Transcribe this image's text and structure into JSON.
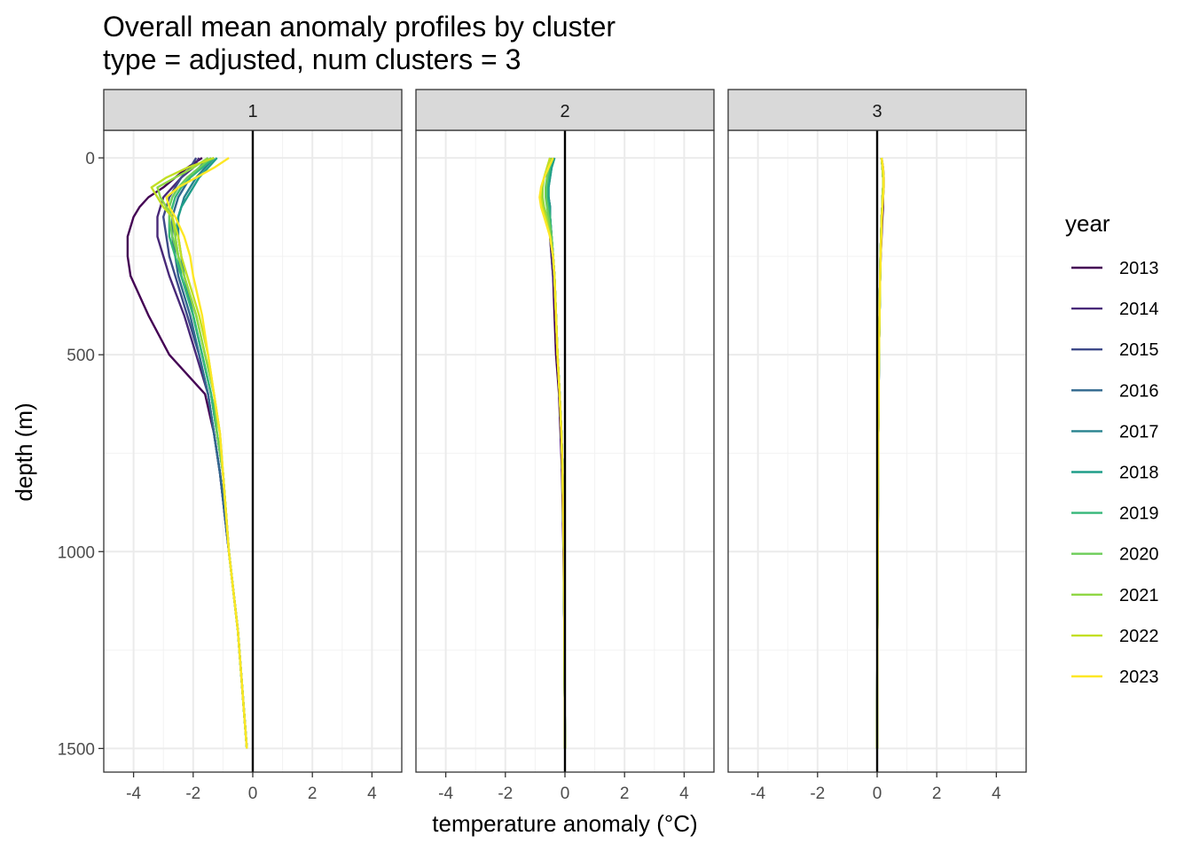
{
  "title_line1": "Overall mean anomaly profiles by cluster",
  "title_line2": "type = adjusted, num clusters = 3",
  "chart_data": {
    "type": "line",
    "title": "Overall mean anomaly profiles by cluster",
    "subtitle": "type = adjusted, num clusters = 3",
    "xlabel": "temperature anomaly (°C)",
    "ylabel": "depth (m)",
    "xlim": [
      -5,
      5
    ],
    "ylim": [
      1560,
      -70
    ],
    "y_reversed": true,
    "x_ticks": [
      -4,
      -2,
      0,
      2,
      4
    ],
    "y_ticks": [
      0,
      500,
      1000,
      1500
    ],
    "grid": true,
    "legend_title": "year",
    "legend_position": "right",
    "reference_line_x": 0,
    "panels": [
      "1",
      "2",
      "3"
    ],
    "depths": [
      0,
      25,
      50,
      75,
      100,
      125,
      150,
      200,
      250,
      300,
      400,
      500,
      600,
      700,
      800,
      1000,
      1200,
      1500
    ],
    "series": [
      {
        "name": "2013",
        "color": "#440154",
        "panels": {
          "1": [
            -1.7,
            -2.2,
            -2.6,
            -3.0,
            -3.5,
            -3.8,
            -4.0,
            -4.2,
            -4.2,
            -4.1,
            -3.5,
            -2.8,
            -1.6,
            -1.3,
            -1.1,
            -0.8,
            -0.5,
            -0.2
          ],
          "2": [
            -0.5,
            -0.55,
            -0.6,
            -0.6,
            -0.55,
            -0.5,
            -0.5,
            -0.5,
            -0.45,
            -0.4,
            -0.35,
            -0.3,
            -0.2,
            -0.15,
            -0.1,
            -0.05,
            -0.02,
            0.0
          ],
          "3": [
            0.15,
            0.2,
            0.22,
            0.22,
            0.2,
            0.2,
            0.18,
            0.15,
            0.12,
            0.1,
            0.08,
            0.06,
            0.05,
            0.04,
            0.03,
            0.02,
            0.01,
            0.0
          ]
        }
      },
      {
        "name": "2014",
        "color": "#482878",
        "panels": {
          "1": [
            -1.8,
            -2.0,
            -2.4,
            -2.7,
            -3.0,
            -3.1,
            -3.2,
            -3.2,
            -3.0,
            -2.8,
            -2.3,
            -1.9,
            -1.5,
            -1.3,
            -1.1,
            -0.8,
            -0.5,
            -0.2
          ],
          "2": [
            -0.45,
            -0.5,
            -0.55,
            -0.6,
            -0.6,
            -0.55,
            -0.55,
            -0.5,
            -0.45,
            -0.4,
            -0.3,
            -0.25,
            -0.18,
            -0.12,
            -0.08,
            -0.04,
            -0.02,
            0.0
          ],
          "3": [
            0.15,
            0.18,
            0.2,
            0.2,
            0.2,
            0.18,
            0.16,
            0.14,
            0.12,
            0.1,
            0.08,
            0.06,
            0.05,
            0.04,
            0.03,
            0.02,
            0.01,
            0.0
          ]
        }
      },
      {
        "name": "2015",
        "color": "#3E4A89",
        "panels": {
          "1": [
            -1.9,
            -2.1,
            -2.4,
            -2.6,
            -2.8,
            -2.9,
            -3.0,
            -2.9,
            -2.8,
            -2.6,
            -2.2,
            -1.8,
            -1.5,
            -1.3,
            -1.1,
            -0.8,
            -0.5,
            -0.2
          ],
          "2": [
            -0.5,
            -0.55,
            -0.6,
            -0.6,
            -0.6,
            -0.55,
            -0.5,
            -0.45,
            -0.4,
            -0.35,
            -0.3,
            -0.25,
            -0.18,
            -0.12,
            -0.08,
            -0.04,
            -0.02,
            0.0
          ],
          "3": [
            0.15,
            0.18,
            0.2,
            0.2,
            0.18,
            0.17,
            0.15,
            0.13,
            0.11,
            0.1,
            0.08,
            0.06,
            0.05,
            0.04,
            0.03,
            0.02,
            0.01,
            0.0
          ]
        }
      },
      {
        "name": "2016",
        "color": "#31688E",
        "panels": {
          "1": [
            -1.5,
            -1.8,
            -2.1,
            -2.3,
            -2.5,
            -2.6,
            -2.7,
            -2.7,
            -2.6,
            -2.5,
            -2.1,
            -1.8,
            -1.5,
            -1.3,
            -1.1,
            -0.8,
            -0.5,
            -0.2
          ],
          "2": [
            -0.4,
            -0.5,
            -0.55,
            -0.6,
            -0.6,
            -0.55,
            -0.5,
            -0.45,
            -0.4,
            -0.35,
            -0.3,
            -0.25,
            -0.18,
            -0.12,
            -0.08,
            -0.04,
            -0.02,
            0.0
          ],
          "3": [
            0.15,
            0.18,
            0.2,
            0.2,
            0.18,
            0.17,
            0.15,
            0.13,
            0.11,
            0.1,
            0.08,
            0.06,
            0.05,
            0.04,
            0.03,
            0.02,
            0.01,
            0.0
          ]
        }
      },
      {
        "name": "2017",
        "color": "#26828E",
        "panels": {
          "1": [
            -1.3,
            -1.6,
            -1.9,
            -2.1,
            -2.3,
            -2.4,
            -2.5,
            -2.5,
            -2.4,
            -2.3,
            -2.0,
            -1.7,
            -1.4,
            -1.2,
            -1.0,
            -0.8,
            -0.5,
            -0.2
          ],
          "2": [
            -0.35,
            -0.45,
            -0.5,
            -0.55,
            -0.55,
            -0.5,
            -0.5,
            -0.45,
            -0.4,
            -0.35,
            -0.3,
            -0.25,
            -0.18,
            -0.12,
            -0.08,
            -0.04,
            -0.02,
            0.0
          ],
          "3": [
            0.15,
            0.18,
            0.2,
            0.2,
            0.18,
            0.17,
            0.15,
            0.13,
            0.11,
            0.1,
            0.08,
            0.06,
            0.05,
            0.04,
            0.03,
            0.02,
            0.01,
            0.0
          ]
        }
      },
      {
        "name": "2018",
        "color": "#1F9E89",
        "panels": {
          "1": [
            -1.2,
            -1.5,
            -1.8,
            -2.0,
            -2.2,
            -2.4,
            -2.5,
            -2.6,
            -2.5,
            -2.4,
            -2.0,
            -1.7,
            -1.4,
            -1.2,
            -1.0,
            -0.8,
            -0.5,
            -0.2
          ],
          "2": [
            -0.35,
            -0.45,
            -0.5,
            -0.55,
            -0.55,
            -0.5,
            -0.5,
            -0.45,
            -0.4,
            -0.35,
            -0.3,
            -0.25,
            -0.18,
            -0.12,
            -0.08,
            -0.04,
            -0.02,
            0.0
          ],
          "3": [
            0.15,
            0.18,
            0.2,
            0.2,
            0.18,
            0.17,
            0.15,
            0.13,
            0.11,
            0.1,
            0.08,
            0.06,
            0.05,
            0.04,
            0.03,
            0.02,
            0.01,
            0.0
          ]
        }
      },
      {
        "name": "2019",
        "color": "#35B779",
        "panels": {
          "1": [
            -1.3,
            -1.7,
            -2.1,
            -2.4,
            -2.6,
            -2.7,
            -2.8,
            -2.8,
            -2.6,
            -2.4,
            -2.0,
            -1.7,
            -1.4,
            -1.2,
            -1.0,
            -0.8,
            -0.5,
            -0.2
          ],
          "2": [
            -0.4,
            -0.5,
            -0.55,
            -0.6,
            -0.6,
            -0.55,
            -0.5,
            -0.45,
            -0.4,
            -0.35,
            -0.3,
            -0.25,
            -0.18,
            -0.12,
            -0.08,
            -0.04,
            -0.02,
            0.0
          ],
          "3": [
            0.15,
            0.18,
            0.2,
            0.2,
            0.18,
            0.17,
            0.15,
            0.13,
            0.11,
            0.1,
            0.08,
            0.06,
            0.05,
            0.04,
            0.03,
            0.02,
            0.01,
            0.0
          ]
        }
      },
      {
        "name": "2020",
        "color": "#6DCD59",
        "panels": {
          "1": [
            -1.4,
            -1.8,
            -2.2,
            -2.5,
            -2.7,
            -2.8,
            -2.8,
            -2.7,
            -2.5,
            -2.3,
            -1.9,
            -1.6,
            -1.3,
            -1.2,
            -1.0,
            -0.8,
            -0.5,
            -0.2
          ],
          "2": [
            -0.45,
            -0.55,
            -0.6,
            -0.65,
            -0.65,
            -0.6,
            -0.55,
            -0.45,
            -0.4,
            -0.35,
            -0.3,
            -0.25,
            -0.18,
            -0.12,
            -0.08,
            -0.04,
            -0.02,
            0.0
          ],
          "3": [
            0.15,
            0.18,
            0.2,
            0.2,
            0.18,
            0.17,
            0.15,
            0.13,
            0.11,
            0.1,
            0.08,
            0.06,
            0.05,
            0.04,
            0.03,
            0.02,
            0.01,
            0.0
          ]
        }
      },
      {
        "name": "2021",
        "color": "#8FD744",
        "panels": {
          "1": [
            -1.5,
            -2.0,
            -2.6,
            -3.2,
            -3.1,
            -2.9,
            -2.7,
            -2.6,
            -2.5,
            -2.3,
            -1.9,
            -1.6,
            -1.3,
            -1.1,
            -1.0,
            -0.8,
            -0.5,
            -0.2
          ],
          "2": [
            -0.5,
            -0.6,
            -0.7,
            -0.75,
            -0.75,
            -0.7,
            -0.6,
            -0.5,
            -0.4,
            -0.35,
            -0.3,
            -0.25,
            -0.18,
            -0.12,
            -0.08,
            -0.04,
            -0.02,
            0.0
          ],
          "3": [
            0.15,
            0.18,
            0.2,
            0.2,
            0.18,
            0.17,
            0.15,
            0.13,
            0.11,
            0.1,
            0.08,
            0.06,
            0.05,
            0.04,
            0.03,
            0.02,
            0.01,
            0.0
          ]
        }
      },
      {
        "name": "2022",
        "color": "#C2DF23",
        "panels": {
          "1": [
            -1.3,
            -2.2,
            -2.9,
            -3.4,
            -3.2,
            -3.0,
            -2.7,
            -2.5,
            -2.4,
            -2.2,
            -1.8,
            -1.5,
            -1.3,
            -1.1,
            -1.0,
            -0.8,
            -0.5,
            -0.2
          ],
          "2": [
            -0.5,
            -0.6,
            -0.7,
            -0.8,
            -0.8,
            -0.75,
            -0.65,
            -0.5,
            -0.4,
            -0.35,
            -0.3,
            -0.25,
            -0.18,
            -0.12,
            -0.08,
            -0.04,
            -0.02,
            0.0
          ],
          "3": [
            0.15,
            0.18,
            0.2,
            0.2,
            0.18,
            0.17,
            0.15,
            0.13,
            0.11,
            0.1,
            0.08,
            0.06,
            0.05,
            0.04,
            0.03,
            0.02,
            0.01,
            0.0
          ]
        }
      },
      {
        "name": "2023",
        "color": "#FDE725",
        "panels": {
          "1": [
            -0.8,
            -1.3,
            -1.9,
            -2.5,
            -2.9,
            -2.8,
            -2.6,
            -2.3,
            -2.1,
            -2.0,
            -1.7,
            -1.5,
            -1.3,
            -1.1,
            -1.0,
            -0.8,
            -0.5,
            -0.2
          ],
          "2": [
            -0.4,
            -0.55,
            -0.7,
            -0.8,
            -0.85,
            -0.8,
            -0.7,
            -0.5,
            -0.4,
            -0.35,
            -0.3,
            -0.25,
            -0.18,
            -0.12,
            -0.08,
            -0.04,
            -0.02,
            0.0
          ],
          "3": [
            0.15,
            0.2,
            0.22,
            0.22,
            0.2,
            0.18,
            0.16,
            0.14,
            0.12,
            0.1,
            0.08,
            0.06,
            0.05,
            0.04,
            0.03,
            0.02,
            0.01,
            0.0
          ]
        }
      }
    ]
  }
}
